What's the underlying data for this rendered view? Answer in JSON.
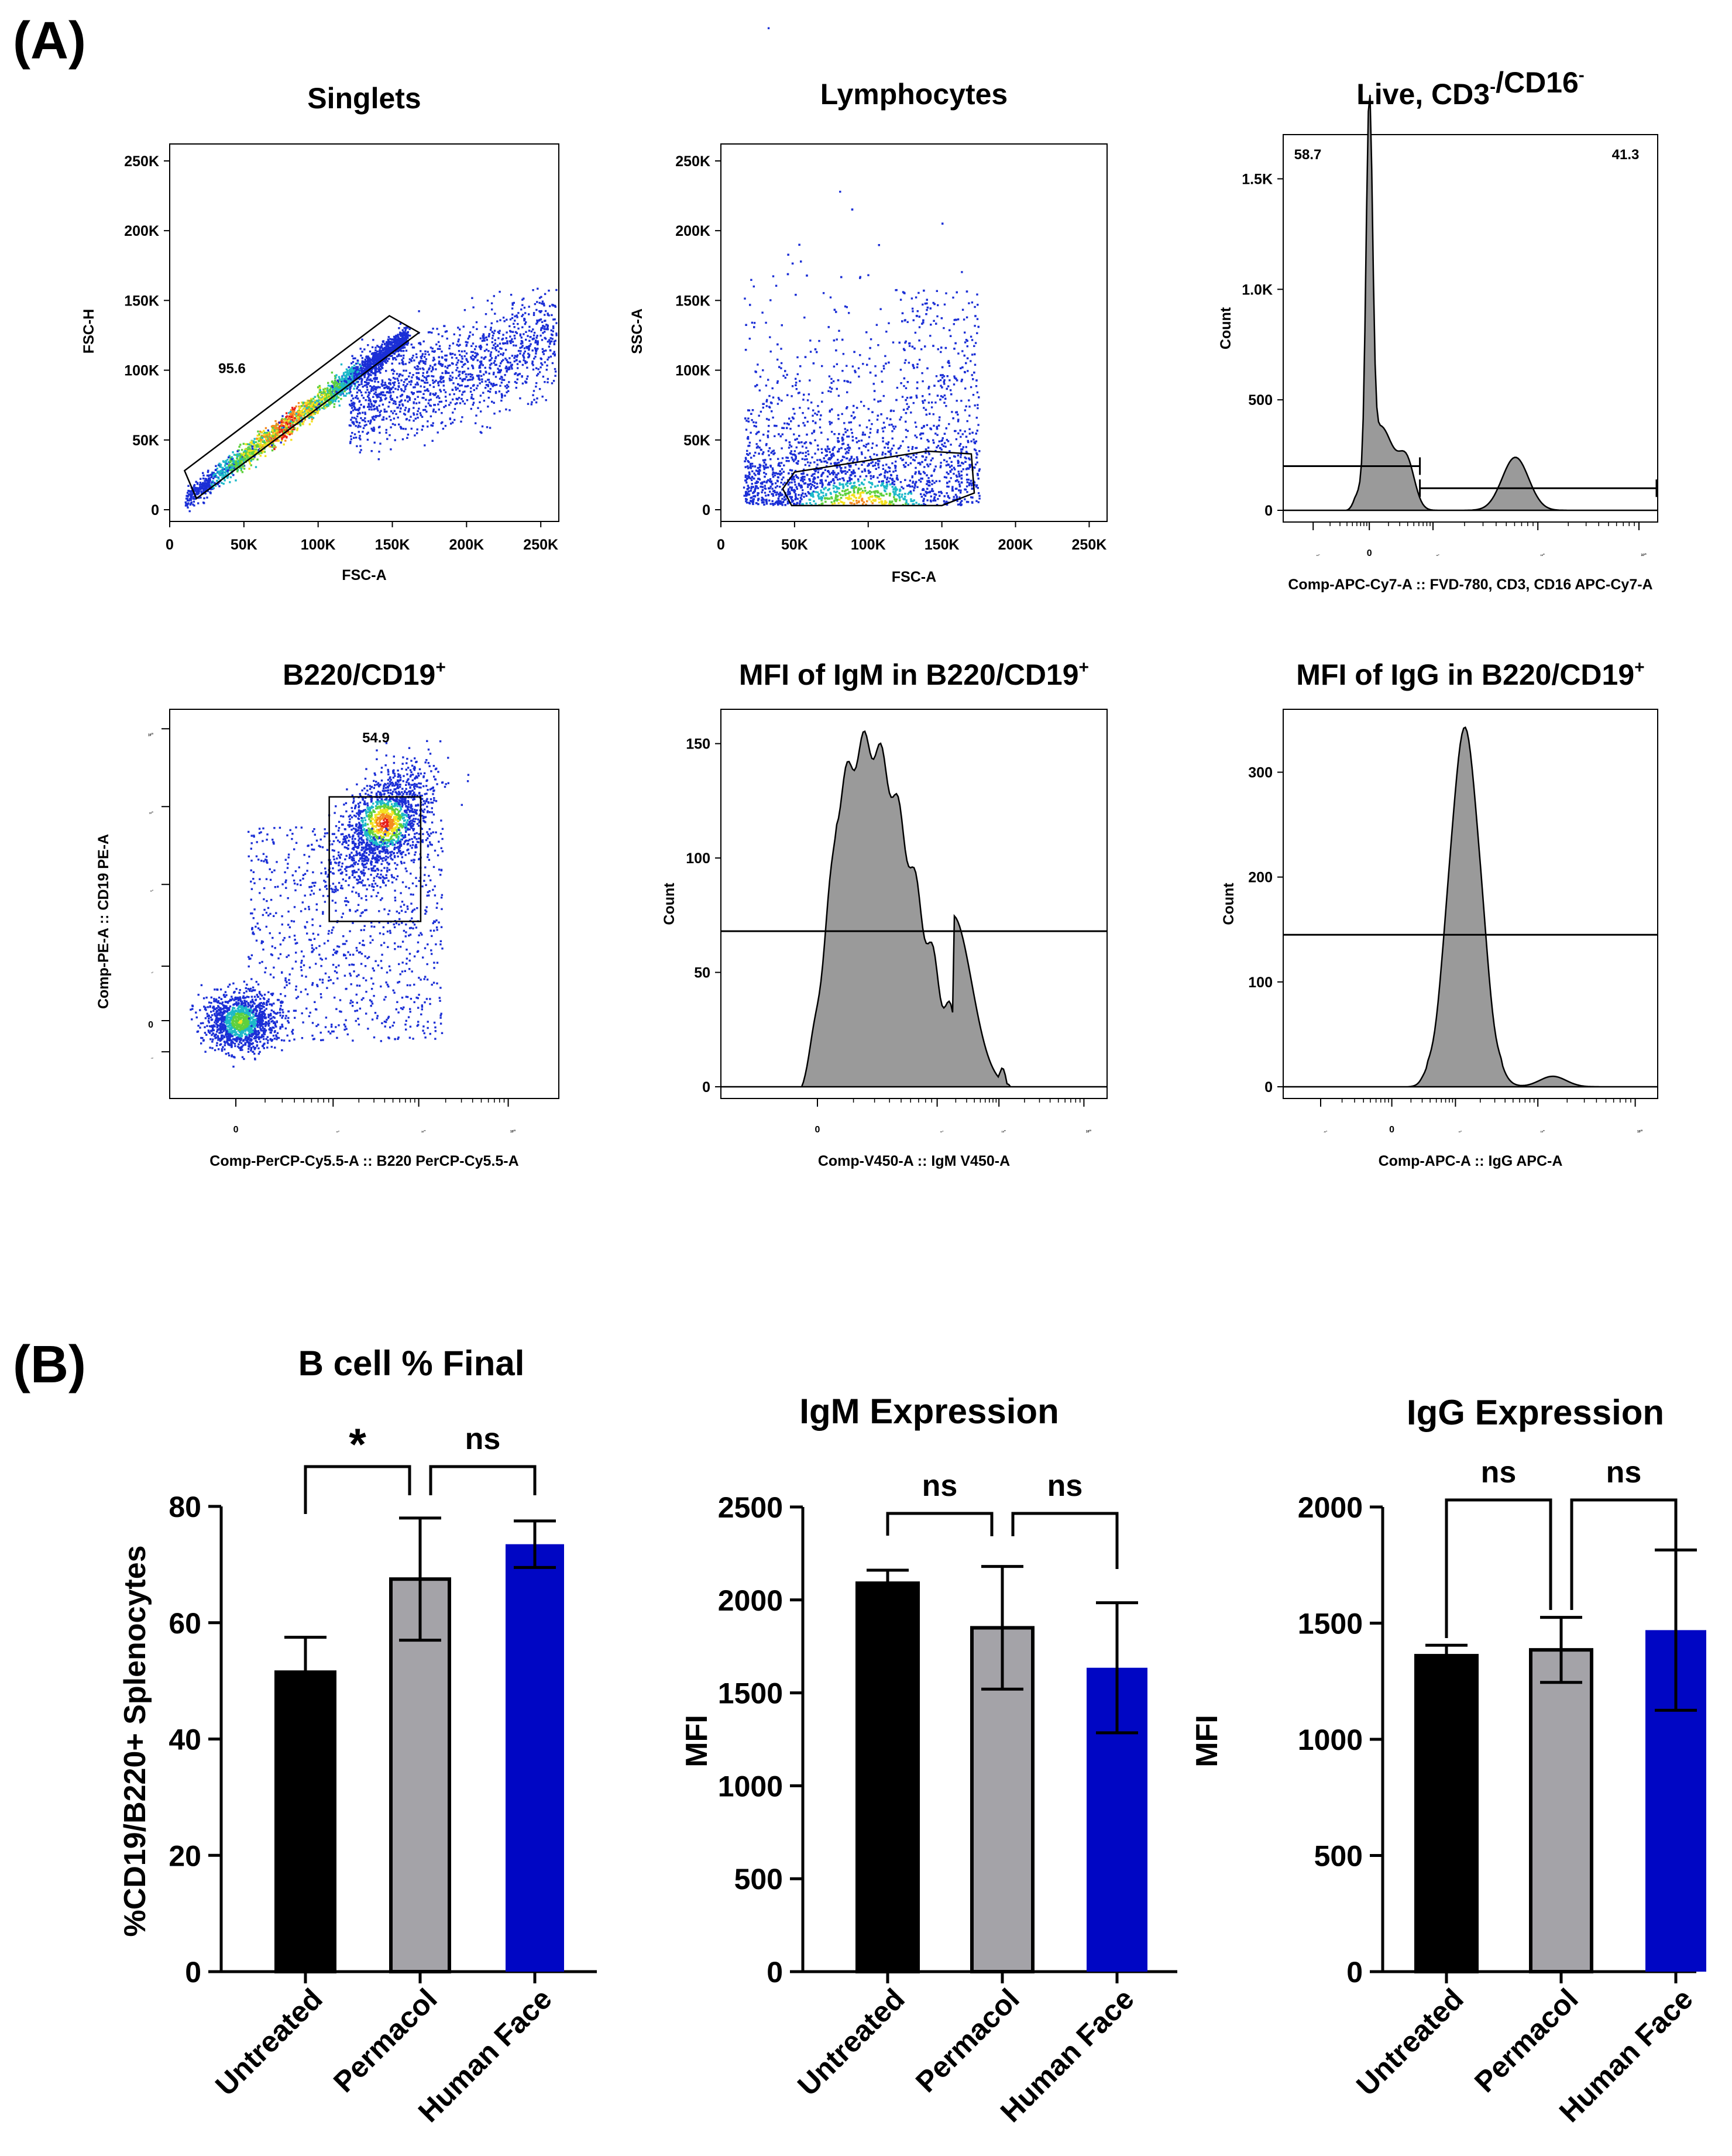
{
  "panel_labels": {
    "a": "(A)",
    "b": "(B)"
  },
  "colors": {
    "untreated": "#000000",
    "permacol": "#a4a3a8",
    "human_face": "#0006c4",
    "hist_fill": "#9a9a9a"
  },
  "chart_data": [
    {
      "type": "scatter",
      "id": "singlets",
      "title": "Singlets",
      "xlabel": "FSC-A",
      "ylabel": "FSC-H",
      "xlim": [
        0,
        262144
      ],
      "ylim": [
        0,
        262144
      ],
      "xticks": [
        0,
        50000,
        100000,
        150000,
        200000,
        250000
      ],
      "xtick_labels": [
        "0",
        "50K",
        "100K",
        "150K",
        "200K",
        "250K"
      ],
      "yticks": [
        0,
        50000,
        100000,
        150000,
        200000,
        250000
      ],
      "ytick_labels": [
        "0",
        "50K",
        "100K",
        "150K",
        "200K",
        "250K"
      ],
      "annotations": [
        "95.6"
      ]
    },
    {
      "type": "scatter",
      "id": "lymphocytes",
      "title": "Lymphocytes",
      "xlabel": "FSC-A",
      "ylabel": "SSC-A",
      "xlim": [
        0,
        262144
      ],
      "ylim": [
        0,
        262144
      ],
      "xticks": [
        0,
        50000,
        100000,
        150000,
        200000,
        250000
      ],
      "xtick_labels": [
        "0",
        "50K",
        "100K",
        "150K",
        "200K",
        "250K"
      ],
      "yticks": [
        0,
        50000,
        100000,
        150000,
        200000,
        250000
      ],
      "ytick_labels": [
        "0",
        "50K",
        "100K",
        "150K",
        "200K",
        "250K"
      ],
      "annotations": []
    },
    {
      "type": "area",
      "id": "live",
      "title": "Live, CD3-/CD16-",
      "title_parts": {
        "a": "Live, CD3",
        "a_sup": "-",
        "b": "/CD16",
        "b_sup": "-"
      },
      "xlabel": "Comp-APC-Cy7-A :: FVD-780, CD3, CD16 APC-Cy7-A",
      "ylabel": "Count",
      "ylim": [
        0,
        1700
      ],
      "yticks": [
        0,
        500,
        1000,
        1500
      ],
      "ytick_labels": [
        "0",
        "500",
        "1.0K",
        "1.5K"
      ],
      "xtick_labels": [
        {
          "base": "-10",
          "exp": "3"
        },
        {
          "base": "0",
          "exp": ""
        },
        {
          "base": "10",
          "exp": "3"
        },
        {
          "base": "10",
          "exp": "4"
        },
        {
          "base": "10",
          "exp": "5"
        }
      ],
      "annotations": [
        "58.7",
        "41.3"
      ],
      "gates": [
        {
          "from": "-10^3",
          "to": "~600",
          "level": 200
        },
        {
          "from": "~600",
          "to": "10^5",
          "level": 100
        }
      ]
    },
    {
      "type": "scatter",
      "id": "b220",
      "title": "B220/CD19+",
      "title_parts": {
        "a": "B220/CD19",
        "a_sup": "+"
      },
      "xlabel": "Comp-PerCP-Cy5.5-A :: B220 PerCP-Cy5.5-A",
      "ylabel": "Comp-PE-A :: CD19 PE-A",
      "xtick_labels": [
        {
          "base": "0",
          "exp": ""
        },
        {
          "base": "10",
          "exp": "3"
        },
        {
          "base": "10",
          "exp": "4"
        },
        {
          "base": "10",
          "exp": "5"
        }
      ],
      "ytick_labels": [
        {
          "base": "-10",
          "exp": "2"
        },
        {
          "base": "0",
          "exp": ""
        },
        {
          "base": "10",
          "exp": "2"
        },
        {
          "base": "10",
          "exp": "3"
        },
        {
          "base": "10",
          "exp": "4"
        },
        {
          "base": "10",
          "exp": "5"
        }
      ],
      "annotations": [
        "54.9"
      ]
    },
    {
      "type": "area",
      "id": "igm_hist",
      "title": "MFI of IgM in B220/CD19+",
      "title_parts": {
        "a": "MFI of IgM in B220/CD19",
        "a_sup": "+"
      },
      "xlabel": "Comp-V450-A :: IgM V450-A",
      "ylabel": "Count",
      "ylim": [
        0,
        165
      ],
      "yticks": [
        0,
        50,
        100,
        150
      ],
      "ytick_labels": [
        "0",
        "50",
        "100",
        "150"
      ],
      "xtick_labels": [
        {
          "base": "0",
          "exp": ""
        },
        {
          "base": "10",
          "exp": "3"
        },
        {
          "base": "10",
          "exp": "4"
        },
        {
          "base": "10",
          "exp": "5"
        }
      ],
      "gates": [
        {
          "level": 68
        }
      ]
    },
    {
      "type": "area",
      "id": "igg_hist",
      "title": "MFI of IgG in B220/CD19+",
      "title_parts": {
        "a": "MFI of IgG in B220/CD19",
        "a_sup": "+"
      },
      "xlabel": "Comp-APC-A :: IgG APC-A",
      "ylabel": "Count",
      "ylim": [
        0,
        360
      ],
      "yticks": [
        0,
        100,
        200,
        300
      ],
      "ytick_labels": [
        "0",
        "100",
        "200",
        "300"
      ],
      "xtick_labels": [
        {
          "base": "-10",
          "exp": "3"
        },
        {
          "base": "0",
          "exp": ""
        },
        {
          "base": "10",
          "exp": "3"
        },
        {
          "base": "10",
          "exp": "4"
        },
        {
          "base": "10",
          "exp": "5"
        }
      ],
      "gates": [
        {
          "level": 145
        }
      ]
    },
    {
      "type": "bar",
      "id": "bcell",
      "title": "B cell % Final",
      "ylabel": "%CD19/B220+ Splenocytes",
      "categories": [
        "Untreated",
        "Permacol",
        "Human Face"
      ],
      "values": [
        51.5,
        67.5,
        73.5
      ],
      "errors": [
        6,
        10.5,
        4
      ],
      "ylim": [
        0,
        80
      ],
      "yticks": [
        0,
        20,
        40,
        60,
        80
      ],
      "ytick_labels": [
        "0",
        "20",
        "40",
        "60",
        "80"
      ],
      "significance": [
        {
          "pair": [
            0,
            1
          ],
          "label": "*"
        },
        {
          "pair": [
            1,
            2
          ],
          "label": "ns"
        }
      ]
    },
    {
      "type": "bar",
      "id": "igm",
      "title": "IgM Expression",
      "ylabel": "MFI",
      "categories": [
        "Untreated",
        "Permacol",
        "Human Face"
      ],
      "values": [
        2090,
        1850,
        1635
      ],
      "errors": [
        70,
        330,
        350
      ],
      "ylim": [
        0,
        2500
      ],
      "yticks": [
        0,
        500,
        1000,
        1500,
        2000,
        2500
      ],
      "ytick_labels": [
        "0",
        "500",
        "1000",
        "1500",
        "2000",
        "2500"
      ],
      "significance": [
        {
          "pair": [
            0,
            1
          ],
          "label": "ns"
        },
        {
          "pair": [
            1,
            2
          ],
          "label": "ns"
        }
      ]
    },
    {
      "type": "bar",
      "id": "igg",
      "title": "IgG Expression",
      "ylabel": "MFI",
      "categories": [
        "Untreated",
        "Permacol",
        "Human Face"
      ],
      "values": [
        1360,
        1385,
        1470
      ],
      "errors": [
        45,
        140,
        345
      ],
      "ylim": [
        0,
        2000
      ],
      "yticks": [
        0,
        500,
        1000,
        1500,
        2000
      ],
      "ytick_labels": [
        "0",
        "500",
        "1000",
        "1500",
        "2000"
      ],
      "significance": [
        {
          "pair": [
            0,
            1
          ],
          "label": "ns"
        },
        {
          "pair": [
            1,
            2
          ],
          "label": "ns"
        }
      ]
    }
  ]
}
